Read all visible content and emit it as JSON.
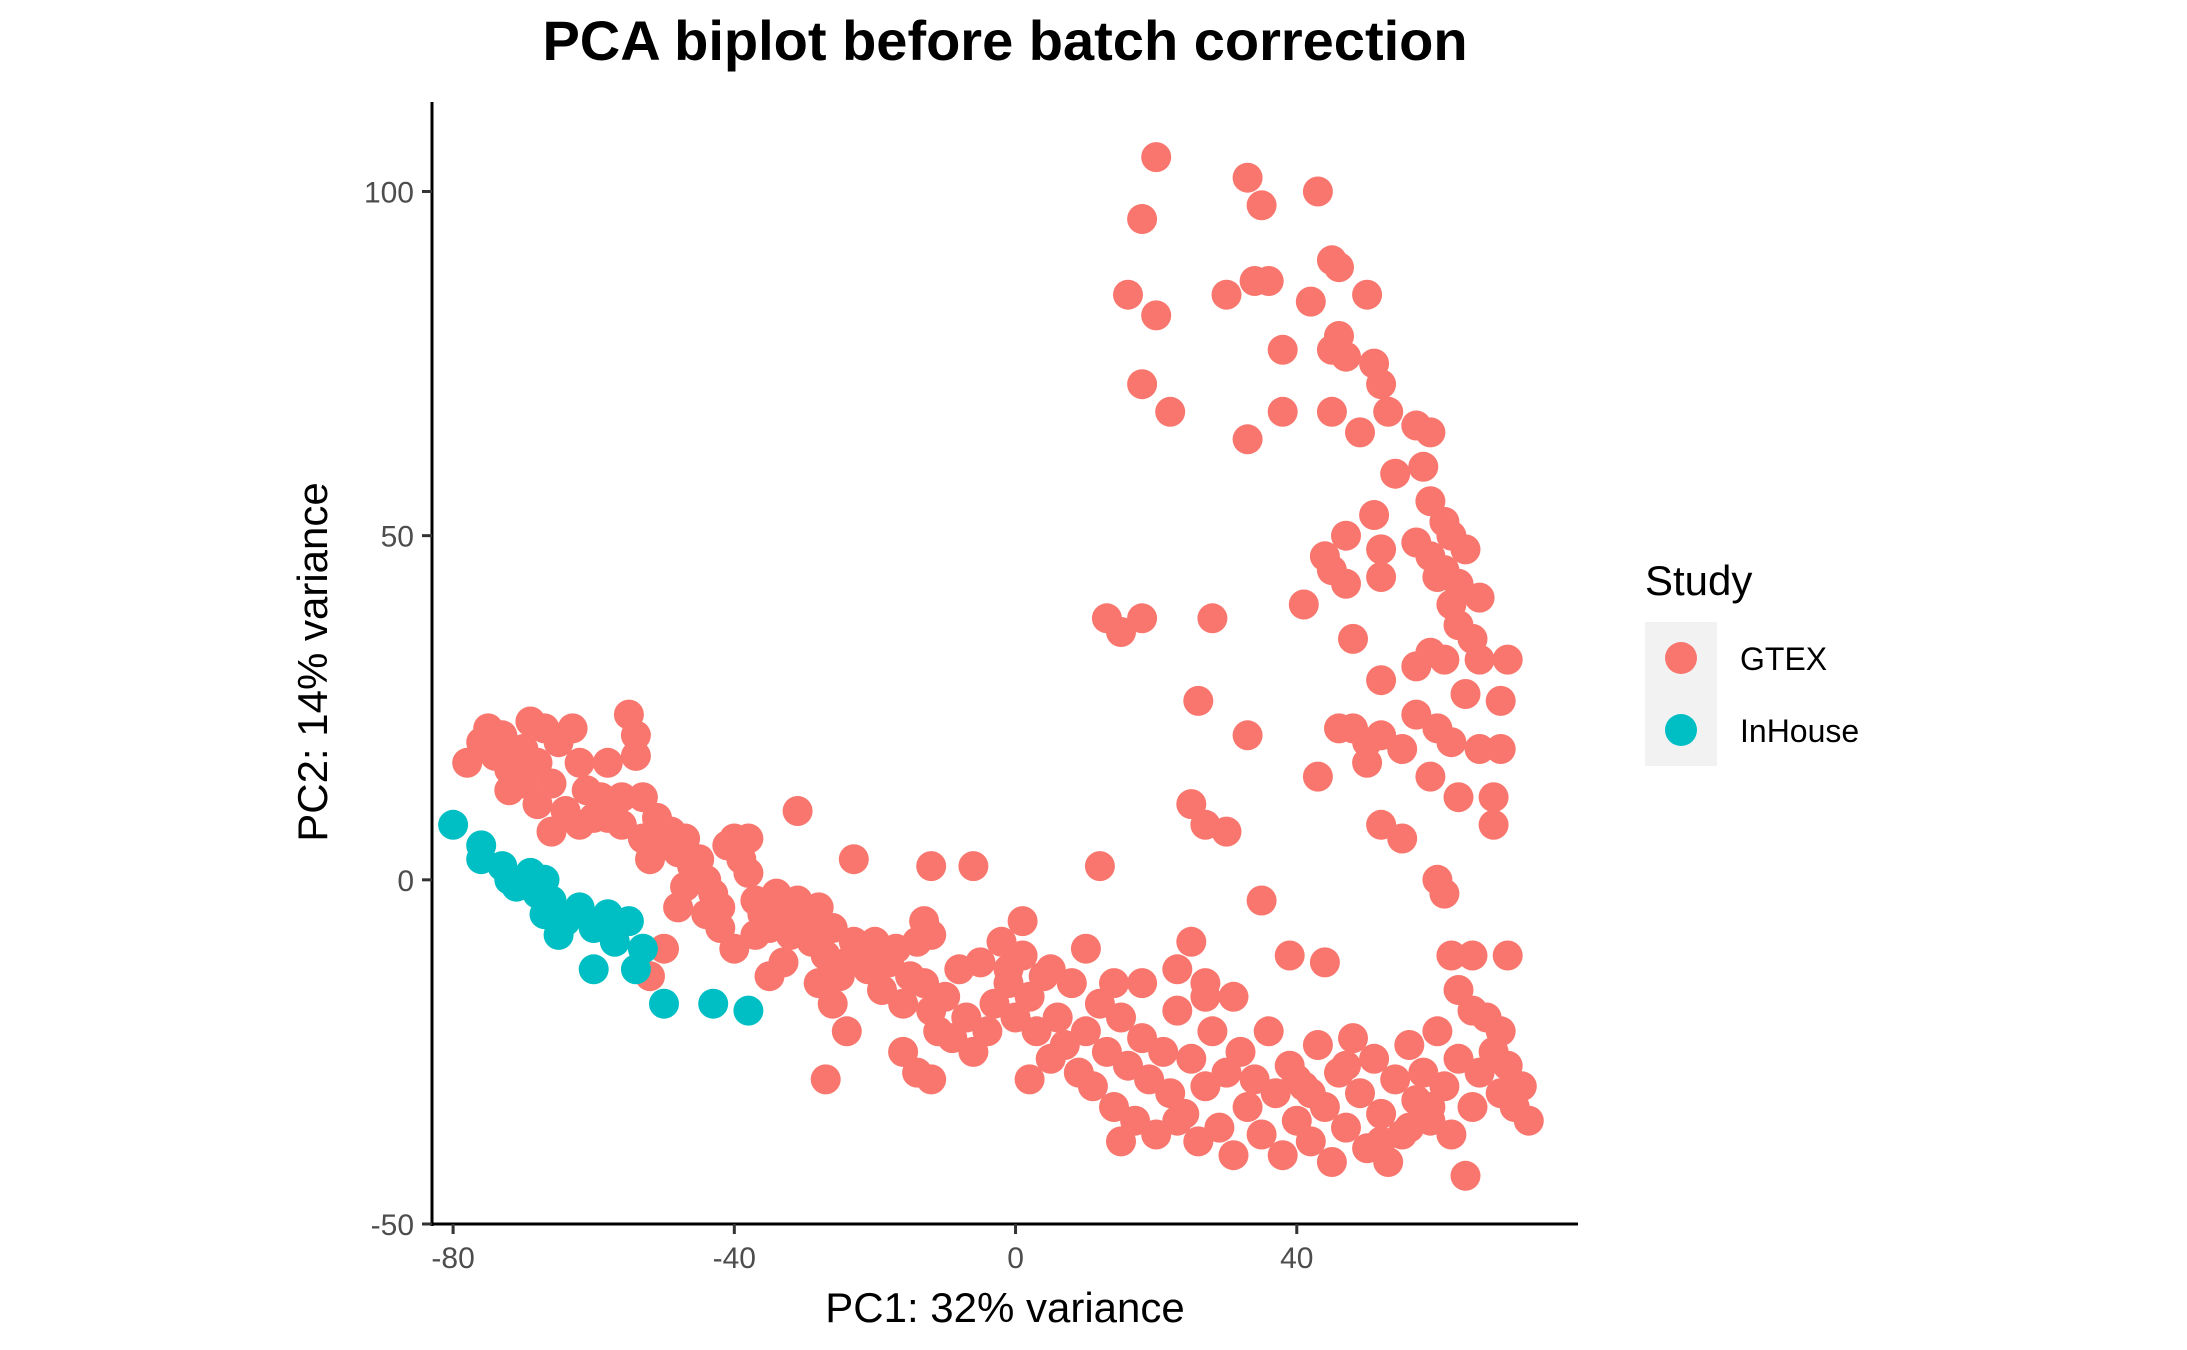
{
  "chart_data": {
    "type": "scatter",
    "title": "PCA biplot before batch correction",
    "xlabel": "PC1: 32% variance",
    "ylabel": "PC2: 14% variance",
    "xlim": [
      -83,
      80
    ],
    "ylim": [
      -50,
      113
    ],
    "x_ticks": [
      -80,
      -40,
      0,
      40
    ],
    "x_tick_labels": [
      "-80",
      "-40",
      "0",
      "40"
    ],
    "y_ticks": [
      -50,
      0,
      50,
      100
    ],
    "y_tick_labels": [
      "-50",
      "0",
      "50",
      "100"
    ],
    "grid": false,
    "legend": {
      "title": "Study",
      "position": "right"
    },
    "series": [
      {
        "name": "GTEX",
        "color": "#F8766D",
        "points": [
          [
            20,
            105
          ],
          [
            33,
            102
          ],
          [
            43,
            100
          ],
          [
            35,
            98
          ],
          [
            18,
            96
          ],
          [
            45,
            90
          ],
          [
            46,
            89
          ],
          [
            50,
            85
          ],
          [
            16,
            85
          ],
          [
            30,
            85
          ],
          [
            20,
            82
          ],
          [
            34,
            87
          ],
          [
            36,
            87
          ],
          [
            42,
            84
          ],
          [
            38,
            77
          ],
          [
            45,
            77
          ],
          [
            46,
            79
          ],
          [
            47,
            76
          ],
          [
            51,
            75
          ],
          [
            52,
            72
          ],
          [
            18,
            72
          ],
          [
            22,
            68
          ],
          [
            38,
            68
          ],
          [
            45,
            68
          ],
          [
            49,
            65
          ],
          [
            53,
            68
          ],
          [
            57,
            66
          ],
          [
            59,
            65
          ],
          [
            33,
            64
          ],
          [
            58,
            60
          ],
          [
            54,
            59
          ],
          [
            59,
            55
          ],
          [
            61,
            52
          ],
          [
            62,
            50
          ],
          [
            64,
            48
          ],
          [
            51,
            53
          ],
          [
            47,
            50
          ],
          [
            44,
            47
          ],
          [
            45,
            45
          ],
          [
            47,
            43
          ],
          [
            52,
            48
          ],
          [
            57,
            49
          ],
          [
            59,
            47
          ],
          [
            61,
            45
          ],
          [
            63,
            43
          ],
          [
            66,
            41
          ],
          [
            52,
            44
          ],
          [
            41,
            40
          ],
          [
            60,
            44
          ],
          [
            62,
            40
          ],
          [
            63,
            37
          ],
          [
            65,
            35
          ],
          [
            66,
            32
          ],
          [
            70,
            32
          ],
          [
            59,
            33
          ],
          [
            61,
            32
          ],
          [
            57,
            31
          ],
          [
            48,
            35
          ],
          [
            13,
            38
          ],
          [
            18,
            38
          ],
          [
            15,
            36
          ],
          [
            28,
            38
          ],
          [
            52,
            29
          ],
          [
            64,
            27
          ],
          [
            69,
            26
          ],
          [
            26,
            26
          ],
          [
            33,
            21
          ],
          [
            46,
            22
          ],
          [
            48,
            22
          ],
          [
            50,
            20
          ],
          [
            52,
            21
          ],
          [
            55,
            19
          ],
          [
            57,
            24
          ],
          [
            60,
            22
          ],
          [
            62,
            20
          ],
          [
            66,
            19
          ],
          [
            69,
            19
          ],
          [
            43,
            15
          ],
          [
            50,
            17
          ],
          [
            59,
            15
          ],
          [
            63,
            12
          ],
          [
            68,
            12
          ],
          [
            25,
            11
          ],
          [
            27,
            8
          ],
          [
            30,
            7
          ],
          [
            52,
            8
          ],
          [
            55,
            6
          ],
          [
            68,
            8
          ],
          [
            60,
            0
          ],
          [
            61,
            -2
          ],
          [
            35,
            -3
          ],
          [
            12,
            2
          ],
          [
            -12,
            2
          ],
          [
            -6,
            2
          ],
          [
            -23,
            3
          ],
          [
            -31,
            10
          ],
          [
            -78,
            17
          ],
          [
            -76,
            20
          ],
          [
            -75,
            22
          ],
          [
            -73,
            21
          ],
          [
            -72,
            13
          ],
          [
            -70,
            19
          ],
          [
            -69,
            23
          ],
          [
            -68,
            17
          ],
          [
            -67,
            22
          ],
          [
            -66,
            14
          ],
          [
            -65,
            20
          ],
          [
            -64,
            10
          ],
          [
            -63,
            22
          ],
          [
            -62,
            17
          ],
          [
            -61,
            13
          ],
          [
            -60,
            9
          ],
          [
            -59,
            12
          ],
          [
            -58,
            17
          ],
          [
            -57,
            11
          ],
          [
            -56,
            8
          ],
          [
            -55,
            24
          ],
          [
            -54,
            21
          ],
          [
            -54,
            18
          ],
          [
            -53,
            6
          ],
          [
            -52,
            3
          ],
          [
            -51,
            7
          ],
          [
            -50,
            5
          ],
          [
            -49,
            7
          ],
          [
            -48,
            4
          ],
          [
            -47,
            6
          ],
          [
            -46,
            2
          ],
          [
            -45,
            3
          ],
          [
            -44,
            0
          ],
          [
            -43,
            -2
          ],
          [
            -42,
            -4
          ],
          [
            -41,
            5
          ],
          [
            -40,
            6
          ],
          [
            -39,
            3
          ],
          [
            -38,
            6
          ],
          [
            -38,
            1
          ],
          [
            -37,
            -3
          ],
          [
            -36,
            -5
          ],
          [
            -35,
            -7
          ],
          [
            -34,
            -2
          ],
          [
            -33,
            -5
          ],
          [
            -32,
            -8
          ],
          [
            -31,
            -3
          ],
          [
            -30,
            -6
          ],
          [
            -29,
            -9
          ],
          [
            -28,
            -4
          ],
          [
            -27,
            -11
          ],
          [
            -26,
            -7
          ],
          [
            -25,
            -14
          ],
          [
            -24,
            -12
          ],
          [
            -23,
            -9
          ],
          [
            -22,
            -11
          ],
          [
            -21,
            -13
          ],
          [
            -20,
            -9
          ],
          [
            -19,
            -16
          ],
          [
            -18,
            -12
          ],
          [
            -17,
            -10
          ],
          [
            -16,
            -18
          ],
          [
            -15,
            -14
          ],
          [
            -14,
            -9
          ],
          [
            -13,
            -15
          ],
          [
            -12,
            -19
          ],
          [
            -11,
            -22
          ],
          [
            -10,
            -17
          ],
          [
            -9,
            -23
          ],
          [
            -8,
            -13
          ],
          [
            -7,
            -20
          ],
          [
            -6,
            -25
          ],
          [
            -5,
            -12
          ],
          [
            -4,
            -22
          ],
          [
            -3,
            -18
          ],
          [
            -2,
            -9
          ],
          [
            -1,
            -15
          ],
          [
            0,
            -20
          ],
          [
            1,
            -11
          ],
          [
            2,
            -17
          ],
          [
            3,
            -22
          ],
          [
            4,
            -14
          ],
          [
            5,
            -26
          ],
          [
            6,
            -20
          ],
          [
            7,
            -24
          ],
          [
            8,
            -15
          ],
          [
            9,
            -28
          ],
          [
            10,
            -22
          ],
          [
            11,
            -30
          ],
          [
            12,
            -18
          ],
          [
            13,
            -25
          ],
          [
            14,
            -33
          ],
          [
            15,
            -20
          ],
          [
            16,
            -27
          ],
          [
            17,
            -35
          ],
          [
            18,
            -23
          ],
          [
            19,
            -29
          ],
          [
            20,
            -37
          ],
          [
            21,
            -25
          ],
          [
            22,
            -31
          ],
          [
            23,
            -19
          ],
          [
            24,
            -34
          ],
          [
            25,
            -26
          ],
          [
            26,
            -38
          ],
          [
            27,
            -30
          ],
          [
            28,
            -22
          ],
          [
            29,
            -36
          ],
          [
            30,
            -28
          ],
          [
            31,
            -40
          ],
          [
            32,
            -25
          ],
          [
            33,
            -33
          ],
          [
            34,
            -29
          ],
          [
            35,
            -37
          ],
          [
            36,
            -22
          ],
          [
            37,
            -31
          ],
          [
            38,
            -40
          ],
          [
            39,
            -27
          ],
          [
            40,
            -35
          ],
          [
            41,
            -30
          ],
          [
            42,
            -38
          ],
          [
            43,
            -24
          ],
          [
            44,
            -33
          ],
          [
            45,
            -41
          ],
          [
            46,
            -28
          ],
          [
            47,
            -36
          ],
          [
            48,
            -23
          ],
          [
            49,
            -31
          ],
          [
            50,
            -39
          ],
          [
            51,
            -26
          ],
          [
            52,
            -34
          ],
          [
            53,
            -41
          ],
          [
            54,
            -29
          ],
          [
            55,
            -37
          ],
          [
            56,
            -24
          ],
          [
            57,
            -32
          ],
          [
            58,
            -28
          ],
          [
            59,
            -35
          ],
          [
            60,
            -22
          ],
          [
            61,
            -30
          ],
          [
            62,
            -37
          ],
          [
            63,
            -26
          ],
          [
            64,
            -43
          ],
          [
            65,
            -33
          ],
          [
            66,
            -28
          ],
          [
            67,
            -20
          ],
          [
            68,
            -25
          ],
          [
            69,
            -31
          ],
          [
            70,
            -27
          ],
          [
            71,
            -33
          ],
          [
            72,
            -30
          ],
          [
            73,
            -35
          ],
          [
            62,
            -11
          ],
          [
            65,
            -11
          ],
          [
            70,
            -11
          ],
          [
            63,
            -16
          ],
          [
            65,
            -19
          ],
          [
            69,
            -22
          ],
          [
            44,
            -12
          ],
          [
            39,
            -11
          ],
          [
            25,
            -9
          ],
          [
            -13,
            -6
          ],
          [
            -12,
            -8
          ],
          [
            -1,
            -13
          ],
          [
            1,
            -6
          ],
          [
            5,
            -13
          ],
          [
            10,
            -10
          ],
          [
            14,
            -15
          ],
          [
            18,
            -15
          ],
          [
            23,
            -13
          ],
          [
            27,
            -15
          ],
          [
            27,
            -17
          ],
          [
            31,
            -17
          ],
          [
            -40,
            -10
          ],
          [
            -37,
            -8
          ],
          [
            -35,
            -14
          ],
          [
            -33,
            -12
          ],
          [
            -28,
            -15
          ],
          [
            -26,
            -18
          ],
          [
            -24,
            -22
          ],
          [
            -16,
            -25
          ],
          [
            -14,
            -28
          ],
          [
            -12,
            -29
          ],
          [
            -27,
            -29
          ],
          [
            2,
            -29
          ],
          [
            15,
            -38
          ],
          [
            23,
            -35
          ],
          [
            40,
            -29
          ],
          [
            42,
            -31
          ],
          [
            47,
            -27
          ],
          [
            52,
            -38
          ],
          [
            56,
            -36
          ],
          [
            59,
            -33
          ],
          [
            -56,
            12
          ],
          [
            -58,
            9
          ],
          [
            -62,
            8
          ],
          [
            -66,
            7
          ],
          [
            -68,
            11
          ],
          [
            -70,
            14
          ],
          [
            -72,
            16
          ],
          [
            -74,
            18
          ],
          [
            -53,
            12
          ],
          [
            -51,
            9
          ],
          [
            -47,
            -1
          ],
          [
            -44,
            -5
          ],
          [
            -42,
            -7
          ],
          [
            -50,
            -10
          ],
          [
            -52,
            -14
          ],
          [
            -48,
            -4
          ]
        ]
      },
      {
        "name": "InHouse",
        "color": "#00BFC4",
        "points": [
          [
            -80,
            8
          ],
          [
            -76,
            5
          ],
          [
            -76,
            3
          ],
          [
            -73,
            2
          ],
          [
            -72,
            0
          ],
          [
            -71,
            -1
          ],
          [
            -69,
            1
          ],
          [
            -68,
            -2
          ],
          [
            -67,
            0
          ],
          [
            -67,
            -5
          ],
          [
            -66,
            -3
          ],
          [
            -65,
            -8
          ],
          [
            -64,
            -6
          ],
          [
            -62,
            -4
          ],
          [
            -60,
            -7
          ],
          [
            -60,
            -13
          ],
          [
            -58,
            -5
          ],
          [
            -57,
            -9
          ],
          [
            -55,
            -6
          ],
          [
            -54,
            -13
          ],
          [
            -53,
            -10
          ],
          [
            -50,
            -18
          ],
          [
            -43,
            -18
          ],
          [
            -38,
            -19
          ]
        ]
      }
    ]
  }
}
